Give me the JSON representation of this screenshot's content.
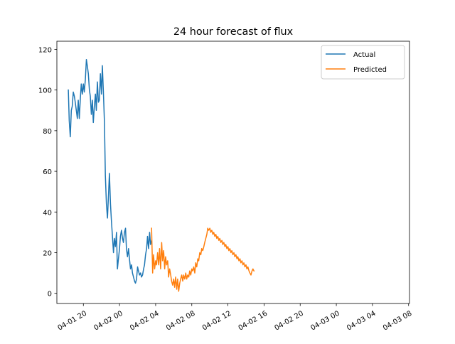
{
  "chart_data": {
    "type": "line",
    "title": "24 hour forecast of flux",
    "xlabel": "",
    "ylabel": "",
    "xlim": [
      "2024-04-01 17:04",
      "2024-04-03 08:06"
    ],
    "ylim": [
      -5,
      124
    ],
    "y_ticks": [
      0,
      20,
      40,
      60,
      80,
      100,
      120
    ],
    "x_ticks": [
      {
        "t": "2024-04-01 20:00",
        "label": "04-01 20"
      },
      {
        "t": "2024-04-02 00:00",
        "label": "04-02 00"
      },
      {
        "t": "2024-04-02 04:00",
        "label": "04-02 04"
      },
      {
        "t": "2024-04-02 08:00",
        "label": "04-02 08"
      },
      {
        "t": "2024-04-02 12:00",
        "label": "04-02 12"
      },
      {
        "t": "2024-04-02 16:00",
        "label": "04-02 16"
      },
      {
        "t": "2024-04-02 20:00",
        "label": "04-02 20"
      },
      {
        "t": "2024-04-03 00:00",
        "label": "04-03 00"
      },
      {
        "t": "2024-04-03 04:00",
        "label": "04-03 04"
      },
      {
        "t": "2024-04-03 08:00",
        "label": "04-03 08"
      }
    ],
    "grid": false,
    "legend": "top-right",
    "series": [
      {
        "name": "Actual",
        "color": "#1f77b4",
        "points": [
          [
            "2024-04-01 18:20",
            100
          ],
          [
            "2024-04-01 18:26",
            85
          ],
          [
            "2024-04-01 18:33",
            77
          ],
          [
            "2024-04-01 18:40",
            90
          ],
          [
            "2024-04-01 18:46",
            92
          ],
          [
            "2024-04-01 18:53",
            99
          ],
          [
            "2024-04-01 19:00",
            97
          ],
          [
            "2024-04-01 19:06",
            94
          ],
          [
            "2024-04-01 19:13",
            90
          ],
          [
            "2024-04-01 19:20",
            86
          ],
          [
            "2024-04-01 19:26",
            95
          ],
          [
            "2024-04-01 19:33",
            86
          ],
          [
            "2024-04-01 19:40",
            96
          ],
          [
            "2024-04-01 19:46",
            103
          ],
          [
            "2024-04-01 19:53",
            98
          ],
          [
            "2024-04-01 20:00",
            103
          ],
          [
            "2024-04-01 20:06",
            99
          ],
          [
            "2024-04-01 20:13",
            105
          ],
          [
            "2024-04-01 20:20",
            115
          ],
          [
            "2024-04-01 20:26",
            112
          ],
          [
            "2024-04-01 20:33",
            108
          ],
          [
            "2024-04-01 20:40",
            100
          ],
          [
            "2024-04-01 20:46",
            97
          ],
          [
            "2024-04-01 20:53",
            88
          ],
          [
            "2024-04-01 21:00",
            95
          ],
          [
            "2024-04-01 21:06",
            84
          ],
          [
            "2024-04-01 21:13",
            92
          ],
          [
            "2024-04-01 21:20",
            98
          ],
          [
            "2024-04-01 21:26",
            90
          ],
          [
            "2024-04-01 21:33",
            104
          ],
          [
            "2024-04-01 21:40",
            94
          ],
          [
            "2024-04-01 21:46",
            95
          ],
          [
            "2024-04-01 21:53",
            108
          ],
          [
            "2024-04-01 22:00",
            98
          ],
          [
            "2024-04-01 22:06",
            112
          ],
          [
            "2024-04-01 22:13",
            99
          ],
          [
            "2024-04-01 22:20",
            84
          ],
          [
            "2024-04-01 22:26",
            58
          ],
          [
            "2024-04-01 22:33",
            44
          ],
          [
            "2024-04-01 22:40",
            37
          ],
          [
            "2024-04-01 22:46",
            47
          ],
          [
            "2024-04-01 22:53",
            59
          ],
          [
            "2024-04-01 23:00",
            44
          ],
          [
            "2024-04-01 23:06",
            36
          ],
          [
            "2024-04-01 23:13",
            28
          ],
          [
            "2024-04-01 23:20",
            20
          ],
          [
            "2024-04-01 23:26",
            27
          ],
          [
            "2024-04-01 23:33",
            23
          ],
          [
            "2024-04-01 23:40",
            30
          ],
          [
            "2024-04-01 23:46",
            12
          ],
          [
            "2024-04-01 23:53",
            17
          ],
          [
            "2024-04-02 00:00",
            22
          ],
          [
            "2024-04-02 00:06",
            28
          ],
          [
            "2024-04-02 00:13",
            31
          ],
          [
            "2024-04-02 00:20",
            27
          ],
          [
            "2024-04-02 00:26",
            25
          ],
          [
            "2024-04-02 00:33",
            30
          ],
          [
            "2024-04-02 00:40",
            32
          ],
          [
            "2024-04-02 00:46",
            22
          ],
          [
            "2024-04-02 00:53",
            18
          ],
          [
            "2024-04-02 01:00",
            22
          ],
          [
            "2024-04-02 01:06",
            17
          ],
          [
            "2024-04-02 01:13",
            12
          ],
          [
            "2024-04-02 01:20",
            14
          ],
          [
            "2024-04-02 01:26",
            10
          ],
          [
            "2024-04-02 01:33",
            8
          ],
          [
            "2024-04-02 01:40",
            6
          ],
          [
            "2024-04-02 01:46",
            5
          ],
          [
            "2024-04-02 01:53",
            7
          ],
          [
            "2024-04-02 02:00",
            13
          ],
          [
            "2024-04-02 02:06",
            11
          ],
          [
            "2024-04-02 02:13",
            9
          ],
          [
            "2024-04-02 02:20",
            10
          ],
          [
            "2024-04-02 02:26",
            8
          ],
          [
            "2024-04-02 02:33",
            9
          ],
          [
            "2024-04-02 02:40",
            12
          ],
          [
            "2024-04-02 02:46",
            14
          ],
          [
            "2024-04-02 02:53",
            19
          ],
          [
            "2024-04-02 03:00",
            22
          ],
          [
            "2024-04-02 03:06",
            28
          ],
          [
            "2024-04-02 03:13",
            22
          ],
          [
            "2024-04-02 03:20",
            30
          ],
          [
            "2024-04-02 03:26",
            24
          ],
          [
            "2024-04-02 03:33",
            26
          ]
        ]
      },
      {
        "name": "Predicted",
        "color": "#ff7f0e",
        "points": [
          [
            "2024-04-02 03:33",
            32
          ],
          [
            "2024-04-02 03:40",
            10
          ],
          [
            "2024-04-02 03:46",
            19
          ],
          [
            "2024-04-02 03:53",
            12
          ],
          [
            "2024-04-02 04:00",
            16
          ],
          [
            "2024-04-02 04:06",
            14
          ],
          [
            "2024-04-02 04:13",
            20
          ],
          [
            "2024-04-02 04:20",
            14
          ],
          [
            "2024-04-02 04:26",
            22
          ],
          [
            "2024-04-02 04:33",
            12
          ],
          [
            "2024-04-02 04:40",
            25
          ],
          [
            "2024-04-02 04:46",
            16
          ],
          [
            "2024-04-02 04:53",
            21
          ],
          [
            "2024-04-02 05:00",
            12
          ],
          [
            "2024-04-02 05:06",
            18
          ],
          [
            "2024-04-02 05:13",
            14
          ],
          [
            "2024-04-02 05:20",
            16
          ],
          [
            "2024-04-02 05:26",
            8
          ],
          [
            "2024-04-02 05:33",
            12
          ],
          [
            "2024-04-02 05:40",
            9
          ],
          [
            "2024-04-02 05:46",
            6
          ],
          [
            "2024-04-02 05:53",
            4
          ],
          [
            "2024-04-02 06:00",
            7
          ],
          [
            "2024-04-02 06:06",
            3
          ],
          [
            "2024-04-02 06:13",
            8
          ],
          [
            "2024-04-02 06:20",
            2
          ],
          [
            "2024-04-02 06:26",
            7
          ],
          [
            "2024-04-02 06:33",
            1
          ],
          [
            "2024-04-02 06:40",
            5
          ],
          [
            "2024-04-02 06:46",
            7
          ],
          [
            "2024-04-02 06:53",
            9
          ],
          [
            "2024-04-02 07:00",
            6
          ],
          [
            "2024-04-02 07:06",
            9
          ],
          [
            "2024-04-02 07:13",
            7
          ],
          [
            "2024-04-02 07:20",
            10
          ],
          [
            "2024-04-02 07:26",
            7
          ],
          [
            "2024-04-02 07:33",
            9
          ],
          [
            "2024-04-02 07:40",
            8
          ],
          [
            "2024-04-02 07:46",
            11
          ],
          [
            "2024-04-02 07:53",
            9
          ],
          [
            "2024-04-02 08:00",
            12
          ],
          [
            "2024-04-02 08:06",
            11
          ],
          [
            "2024-04-02 08:13",
            13
          ],
          [
            "2024-04-02 08:20",
            10
          ],
          [
            "2024-04-02 08:26",
            15
          ],
          [
            "2024-04-02 08:33",
            13
          ],
          [
            "2024-04-02 08:40",
            17
          ],
          [
            "2024-04-02 08:46",
            16
          ],
          [
            "2024-04-02 08:53",
            20
          ],
          [
            "2024-04-02 09:00",
            19
          ],
          [
            "2024-04-02 09:06",
            22
          ],
          [
            "2024-04-02 09:13",
            21
          ],
          [
            "2024-04-02 09:20",
            23
          ],
          [
            "2024-04-02 09:26",
            25
          ],
          [
            "2024-04-02 09:33",
            27
          ],
          [
            "2024-04-02 09:40",
            29
          ],
          [
            "2024-04-02 09:46",
            32
          ],
          [
            "2024-04-02 09:53",
            31
          ],
          [
            "2024-04-02 10:00",
            32
          ],
          [
            "2024-04-02 10:06",
            30
          ],
          [
            "2024-04-02 10:13",
            31
          ],
          [
            "2024-04-02 10:20",
            29
          ],
          [
            "2024-04-02 10:26",
            30
          ],
          [
            "2024-04-02 10:33",
            28
          ],
          [
            "2024-04-02 10:40",
            29
          ],
          [
            "2024-04-02 10:46",
            27
          ],
          [
            "2024-04-02 10:53",
            28
          ],
          [
            "2024-04-02 11:00",
            26
          ],
          [
            "2024-04-02 11:06",
            27
          ],
          [
            "2024-04-02 11:13",
            25
          ],
          [
            "2024-04-02 11:20",
            26
          ],
          [
            "2024-04-02 11:26",
            24
          ],
          [
            "2024-04-02 11:33",
            25
          ],
          [
            "2024-04-02 11:40",
            23
          ],
          [
            "2024-04-02 11:46",
            24
          ],
          [
            "2024-04-02 11:53",
            22
          ],
          [
            "2024-04-02 12:00",
            23
          ],
          [
            "2024-04-02 12:06",
            21
          ],
          [
            "2024-04-02 12:13",
            22
          ],
          [
            "2024-04-02 12:20",
            20
          ],
          [
            "2024-04-02 12:26",
            21
          ],
          [
            "2024-04-02 12:33",
            19
          ],
          [
            "2024-04-02 12:40",
            20
          ],
          [
            "2024-04-02 12:46",
            18
          ],
          [
            "2024-04-02 12:53",
            19
          ],
          [
            "2024-04-02 13:00",
            17
          ],
          [
            "2024-04-02 13:06",
            18
          ],
          [
            "2024-04-02 13:13",
            16
          ],
          [
            "2024-04-02 13:20",
            17
          ],
          [
            "2024-04-02 13:26",
            15
          ],
          [
            "2024-04-02 13:33",
            16
          ],
          [
            "2024-04-02 13:40",
            14
          ],
          [
            "2024-04-02 13:46",
            15
          ],
          [
            "2024-04-02 13:53",
            13
          ],
          [
            "2024-04-02 14:00",
            14
          ],
          [
            "2024-04-02 14:06",
            12
          ],
          [
            "2024-04-02 14:13",
            13
          ],
          [
            "2024-04-02 14:20",
            11
          ],
          [
            "2024-04-02 14:26",
            10
          ],
          [
            "2024-04-02 14:33",
            9
          ],
          [
            "2024-04-02 14:40",
            11
          ],
          [
            "2024-04-02 14:46",
            12
          ],
          [
            "2024-04-02 14:53",
            11
          ]
        ]
      }
    ]
  }
}
